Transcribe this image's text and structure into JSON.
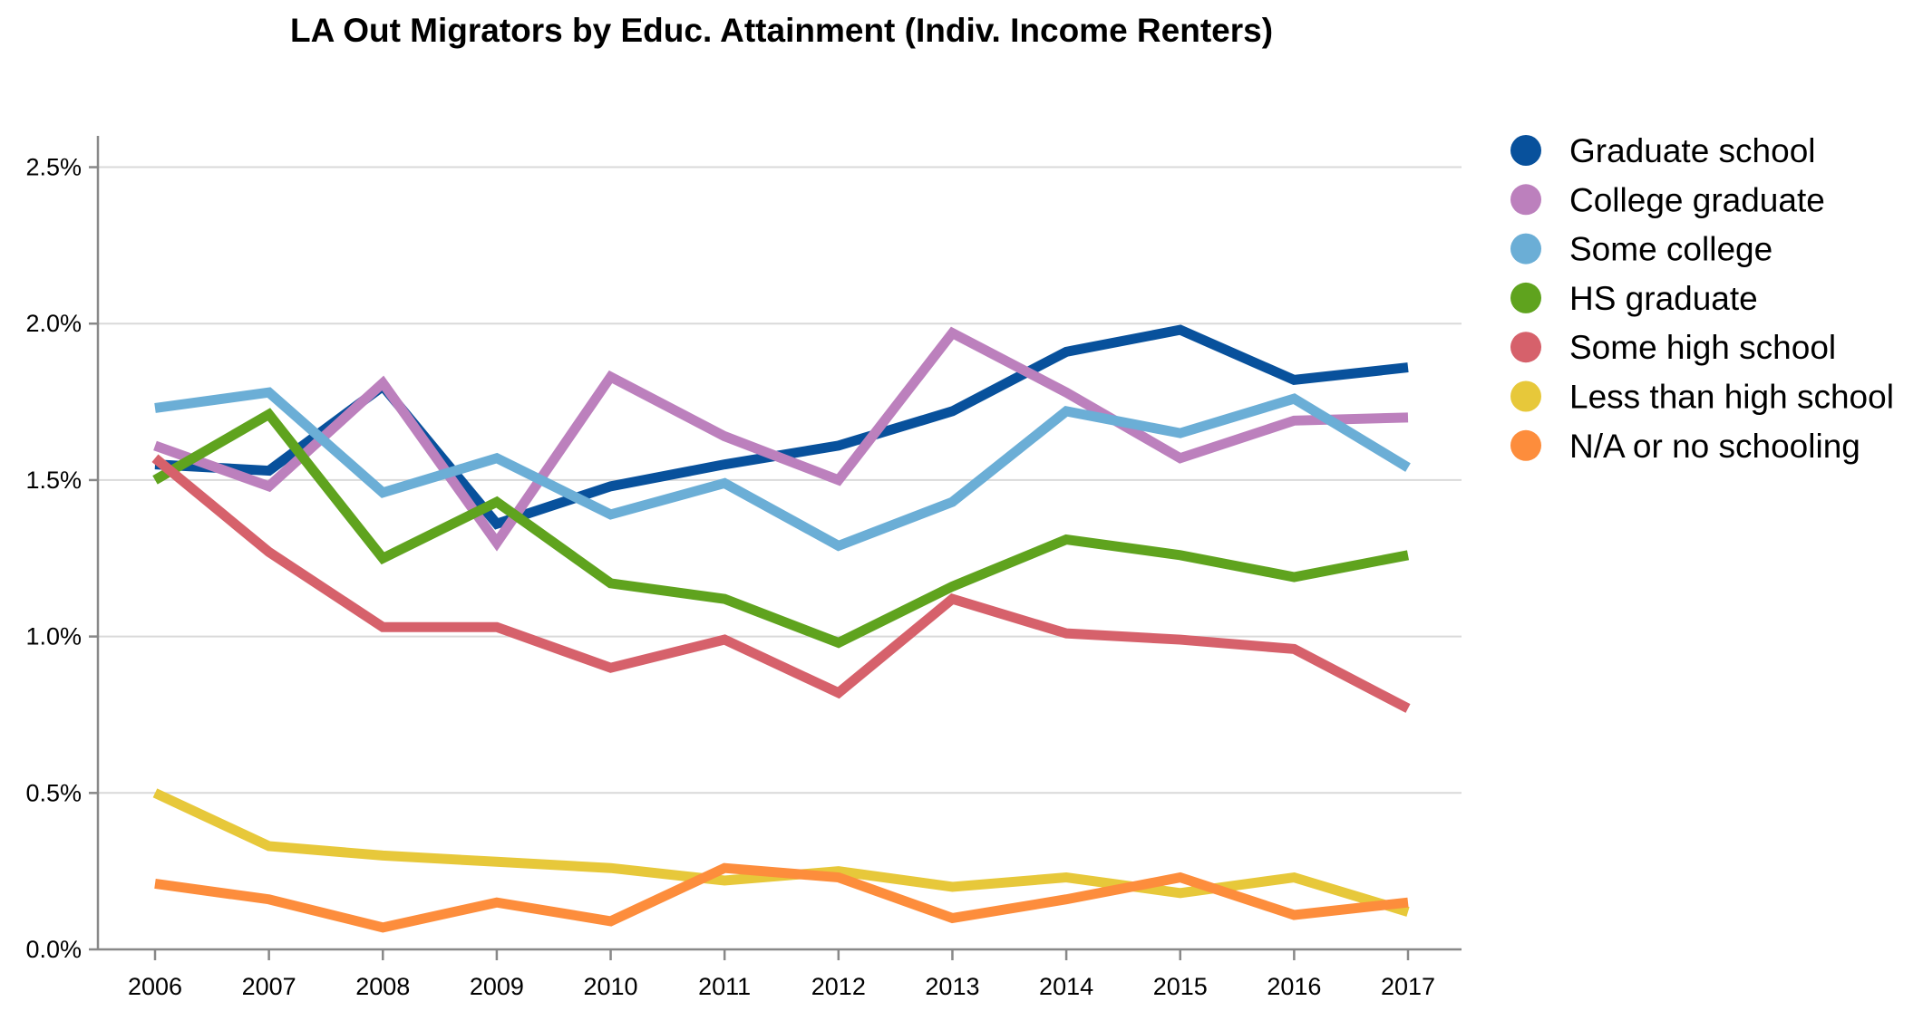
{
  "chart_data": {
    "type": "line",
    "title": "LA Out Migrators by Educ. Attainment (Indiv. Income Renters)",
    "xlabel": "",
    "ylabel": "",
    "x": [
      "2006",
      "2007",
      "2008",
      "2009",
      "2010",
      "2011",
      "2012",
      "2013",
      "2014",
      "2015",
      "2016",
      "2017"
    ],
    "ylim": [
      0,
      2.6
    ],
    "yticks": [
      {
        "value": 0.0,
        "label": "0.0%"
      },
      {
        "value": 0.5,
        "label": "0.5%"
      },
      {
        "value": 1.0,
        "label": "1.0%"
      },
      {
        "value": 1.5,
        "label": "1.5%"
      },
      {
        "value": 2.0,
        "label": "2.0%"
      },
      {
        "value": 2.5,
        "label": "2.5%"
      }
    ],
    "grid": true,
    "legend_position": "top-right",
    "series": [
      {
        "name": "Graduate school",
        "color": "#08519c",
        "values": [
          1.55,
          1.53,
          1.8,
          1.36,
          1.48,
          1.55,
          1.61,
          1.72,
          1.91,
          1.98,
          1.82,
          1.86
        ]
      },
      {
        "name": "College graduate",
        "color": "#bc80bd",
        "values": [
          1.61,
          1.48,
          1.81,
          1.3,
          1.83,
          1.64,
          1.5,
          1.97,
          1.78,
          1.57,
          1.69,
          1.7
        ]
      },
      {
        "name": "Some college",
        "color": "#6baed6",
        "values": [
          1.73,
          1.78,
          1.46,
          1.57,
          1.39,
          1.49,
          1.29,
          1.43,
          1.72,
          1.65,
          1.76,
          1.54
        ]
      },
      {
        "name": "HS graduate",
        "color": "#5fa31e",
        "values": [
          1.5,
          1.71,
          1.25,
          1.43,
          1.17,
          1.12,
          0.98,
          1.16,
          1.31,
          1.26,
          1.19,
          1.26
        ]
      },
      {
        "name": "Some high school",
        "color": "#d6616b",
        "values": [
          1.57,
          1.27,
          1.03,
          1.03,
          0.9,
          0.99,
          0.82,
          1.12,
          1.01,
          0.99,
          0.96,
          0.77
        ]
      },
      {
        "name": "Less than high school",
        "color": "#e7c83a",
        "values": [
          0.5,
          0.33,
          0.3,
          0.28,
          0.26,
          0.22,
          0.25,
          0.2,
          0.23,
          0.18,
          0.23,
          0.12
        ]
      },
      {
        "name": "N/A or no schooling",
        "color": "#fd8d3c",
        "values": [
          0.21,
          0.16,
          0.07,
          0.15,
          0.09,
          0.26,
          0.23,
          0.1,
          0.16,
          0.23,
          0.11,
          0.15
        ]
      }
    ]
  }
}
